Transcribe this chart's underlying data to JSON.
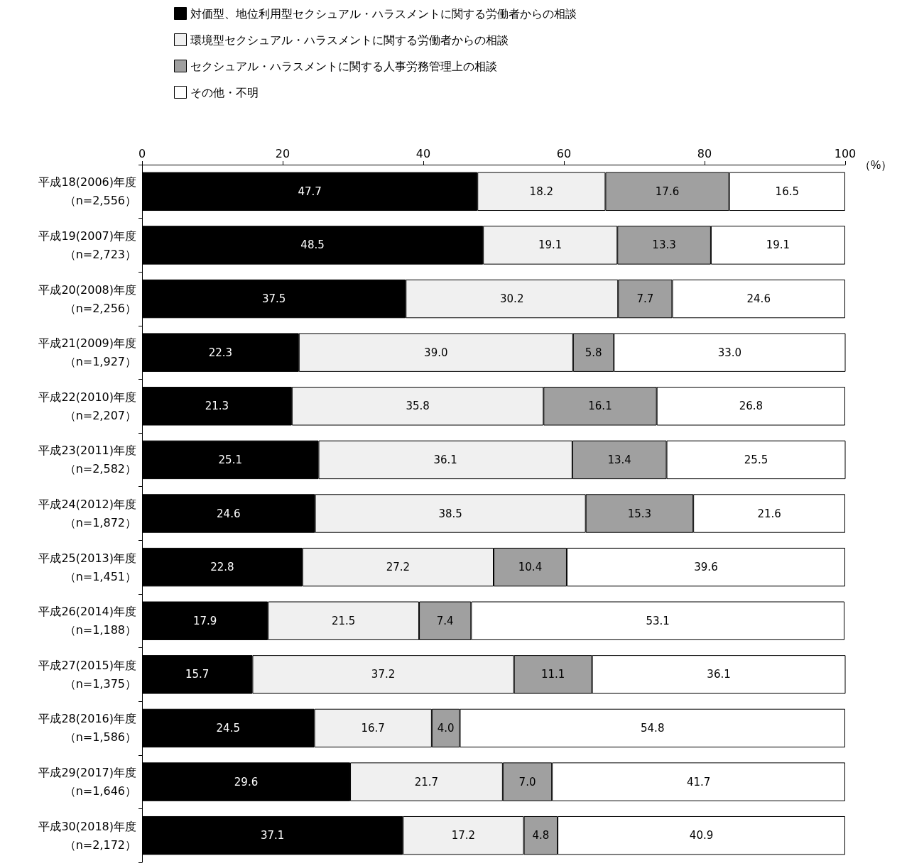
{
  "chart_data": {
    "type": "bar",
    "orientation": "horizontal",
    "stacked": true,
    "xlabel": "（%）",
    "legend": "top",
    "grid": false,
    "categories": [
      "平成18(2006)年度（n=2,556）",
      "平成19(2007)年度（n=2,723）",
      "平成20(2008)年度（n=2,256）",
      "平成21(2009)年度（n=1,927）",
      "平成22(2010)年度（n=2,207）",
      "平成23(2011)年度（n=2,582）",
      "平成24(2012)年度（n=1,872）",
      "平成25(2013)年度（n=1,451）",
      "平成26(2014)年度（n=1,188）",
      "平成27(2015)年度（n=1,375）",
      "平成28(2016)年度（n=1,586）",
      "平成29(2017)年度（n=1,646）",
      "平成30(2018)年度（n=2,172）"
    ],
    "xlim": [
      0,
      100
    ],
    "xticks": [
      0,
      20,
      40,
      60,
      80,
      100
    ],
    "series": [
      {
        "name": "対価型、地位利用型セクシュアル・ハラスメントに関する労働者からの相談",
        "color": "#000000",
        "values": [
          47.7,
          48.5,
          37.5,
          22.3,
          21.3,
          25.1,
          24.6,
          22.8,
          17.9,
          15.7,
          24.5,
          29.6,
          37.1
        ],
        "value_labels": [
          "47.7",
          "48.5",
          "37.5",
          "22.3",
          "21.3",
          "25.1",
          "24.6",
          "22.8",
          "17.9",
          "15.7",
          "24.5",
          "29.6",
          "37.1"
        ]
      },
      {
        "name": "環境型セクシュアル・ハラスメントに関する労働者からの相談",
        "color": "#f0f0f0",
        "values": [
          18.2,
          19.1,
          30.2,
          39.0,
          35.8,
          36.1,
          38.5,
          27.2,
          21.5,
          37.2,
          16.7,
          21.7,
          17.2
        ],
        "value_labels": [
          "18.2",
          "19.1",
          "30.2",
          "39.0",
          "35.8",
          "36.1",
          "38.5",
          "27.2",
          "21.5",
          "37.2",
          "16.7",
          "21.7",
          "17.2"
        ]
      },
      {
        "name": "セクシュアル・ハラスメントに関する人事労務管理上の相談",
        "color": "#a0a0a0",
        "values": [
          17.6,
          13.3,
          7.7,
          5.8,
          16.1,
          13.4,
          15.3,
          10.4,
          7.4,
          11.1,
          4.0,
          7.0,
          4.8
        ],
        "value_labels": [
          "17.6",
          "13.3",
          "7.7",
          "5.8",
          "16.1",
          "13.4",
          "15.3",
          "10.4",
          "7.4",
          "11.1",
          "4.0",
          "7.0",
          "4.8"
        ]
      },
      {
        "name": "その他・不明",
        "color": "#ffffff",
        "values": [
          16.5,
          19.1,
          24.6,
          33.0,
          26.8,
          25.5,
          21.6,
          39.6,
          53.1,
          36.1,
          54.8,
          41.7,
          40.9
        ],
        "value_labels": [
          "16.5",
          "19.1",
          "24.6",
          "33.0",
          "26.8",
          "25.5",
          "21.6",
          "39.6",
          "53.1",
          "36.1",
          "54.8",
          "41.7",
          "40.9"
        ]
      }
    ]
  }
}
